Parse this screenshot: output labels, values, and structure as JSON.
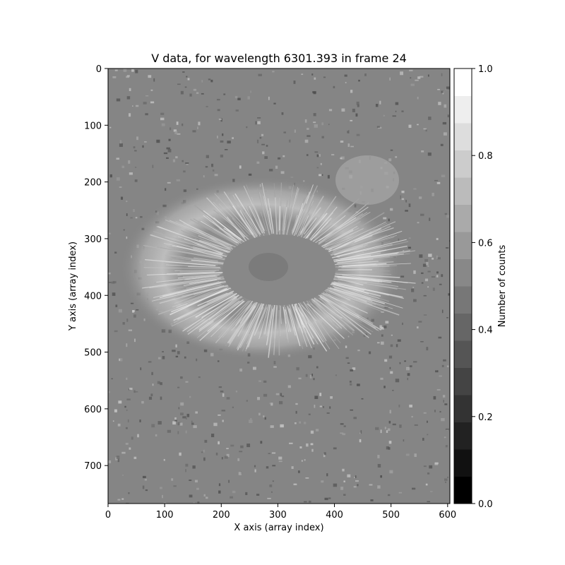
{
  "chart_data": {
    "type": "heatmap",
    "title": "V data,  for wavelength 6301.393 in frame 24",
    "xlabel": "X axis (array index)",
    "ylabel": "Y axis (array index)",
    "xlim": [
      0,
      604
    ],
    "ylim": [
      767,
      0
    ],
    "x_ticks": [
      0,
      100,
      200,
      300,
      400,
      500,
      600
    ],
    "y_ticks": [
      0,
      100,
      200,
      300,
      400,
      500,
      600,
      700
    ],
    "colormap": "gray",
    "colorbar": {
      "label": "Number of counts",
      "range": [
        0.0,
        1.0
      ],
      "levels": 16,
      "ticks": [
        0.0,
        0.2,
        0.4,
        0.6,
        0.8,
        1.0
      ]
    },
    "image_description_features": {
      "background_level": 0.55,
      "umbra_center": [
        330,
        380
      ],
      "umbra_level": 0.57,
      "penumbra_level": 0.75
    }
  },
  "colors": {
    "background_gray": "#858585",
    "frame": "#000000"
  }
}
